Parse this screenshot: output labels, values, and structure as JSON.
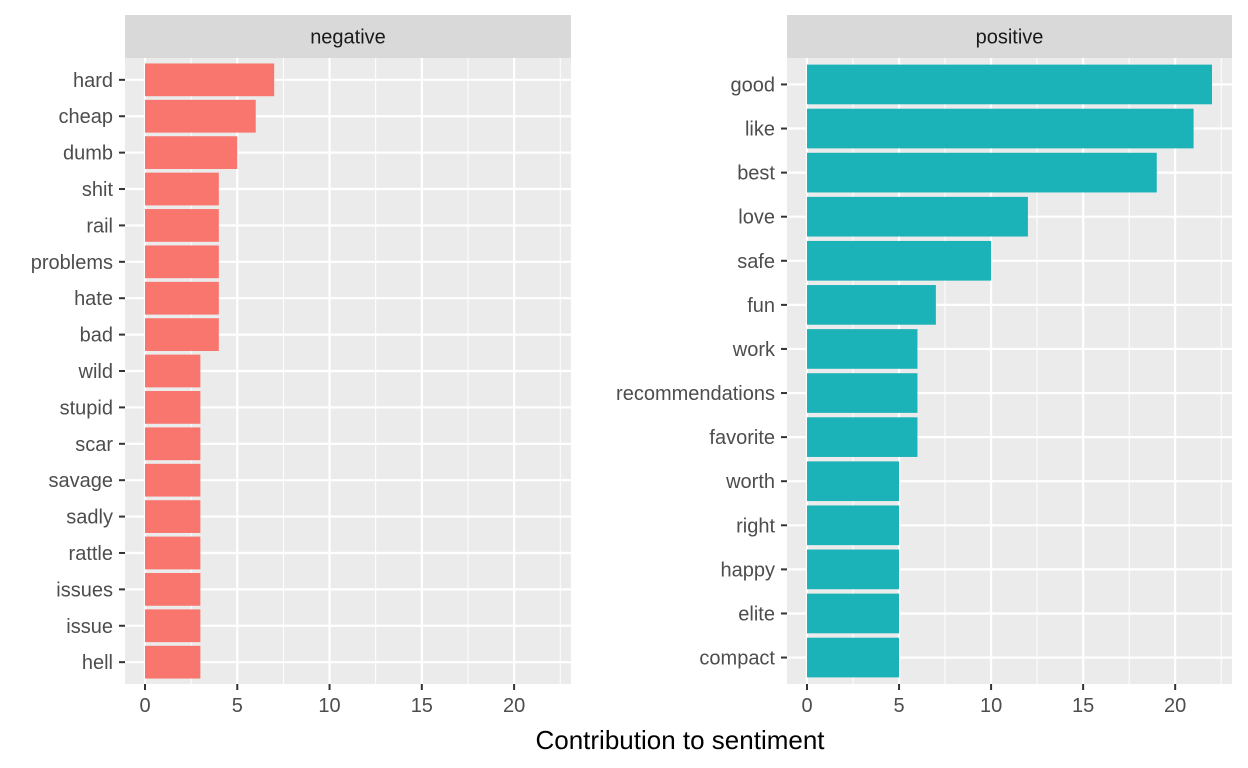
{
  "chart_data": [
    {
      "type": "bar",
      "orientation": "horizontal",
      "facet": "negative",
      "color": "#F8766D",
      "categories": [
        "hard",
        "cheap",
        "dumb",
        "shit",
        "rail",
        "problems",
        "hate",
        "bad",
        "wild",
        "stupid",
        "scar",
        "savage",
        "sadly",
        "rattle",
        "issues",
        "issue",
        "hell"
      ],
      "values": [
        7,
        6,
        5,
        4,
        4,
        4,
        4,
        4,
        3,
        3,
        3,
        3,
        3,
        3,
        3,
        3,
        3
      ],
      "xlim": [
        0,
        22
      ],
      "xticks": [
        0,
        5,
        10,
        15,
        20
      ]
    },
    {
      "type": "bar",
      "orientation": "horizontal",
      "facet": "positive",
      "color": "#1CB3B8",
      "categories": [
        "good",
        "like",
        "best",
        "love",
        "safe",
        "fun",
        "work",
        "recommendations",
        "favorite",
        "worth",
        "right",
        "happy",
        "elite",
        "compact"
      ],
      "values": [
        22,
        21,
        19,
        12,
        10,
        7,
        6,
        6,
        6,
        5,
        5,
        5,
        5,
        5
      ],
      "xlim": [
        0,
        22
      ],
      "xticks": [
        0,
        5,
        10,
        15,
        20
      ]
    }
  ],
  "xlabel": "Contribution to sentiment",
  "style": {
    "panel_bg": "#EBEBEB",
    "strip_bg": "#D9D9D9",
    "grid_color": "#FFFFFF",
    "tick_color": "#333333"
  }
}
